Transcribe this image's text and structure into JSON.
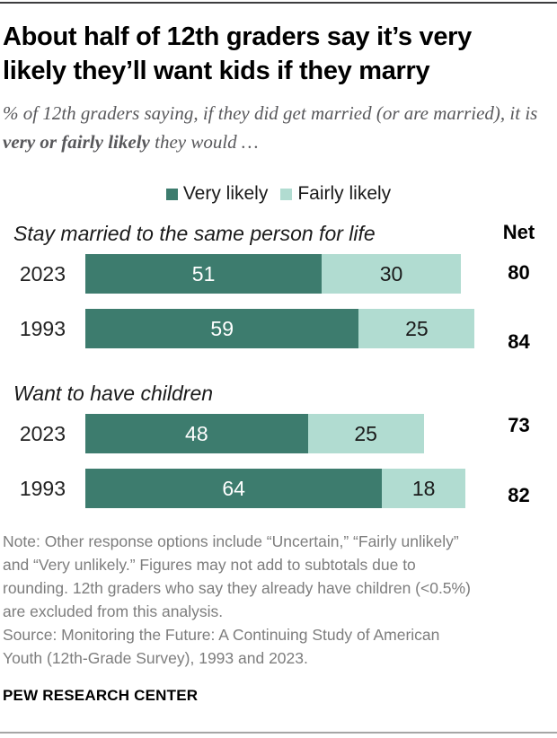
{
  "header": {
    "title_lines": [
      "About half of 12th graders say it’s very",
      "likely they’ll want kids if they marry"
    ],
    "subtitle": {
      "pre": "% of 12th graders saying, if they did get married (or are married), it is ",
      "bold": "very or fairly likely",
      "post": " they would …"
    }
  },
  "legend": [
    {
      "label": "Very likely",
      "color": "#3d7c6e"
    },
    {
      "label": "Fairly likely",
      "color": "#b1dcd1"
    }
  ],
  "net_label": "Net",
  "chart_data": {
    "type": "bar",
    "stacked": true,
    "orientation": "horizontal",
    "unit": "% of 12th graders",
    "series_names": [
      "Very likely",
      "Fairly likely"
    ],
    "xlim": [
      0,
      100
    ],
    "colors": {
      "very_likely": "#3d7c6e",
      "fairly_likely": "#b1dcd1"
    },
    "value_text_colors": {
      "on_dark": "#ffffff",
      "on_light": "#1a1a1a"
    },
    "groups": [
      {
        "title": "Stay married to the same person for life",
        "rows": [
          {
            "year": "2023",
            "very_likely": 51,
            "fairly_likely": 30,
            "net": 80
          },
          {
            "year": "1993",
            "very_likely": 59,
            "fairly_likely": 25,
            "net": 84
          }
        ]
      },
      {
        "title": "Want to have children",
        "rows": [
          {
            "year": "2023",
            "very_likely": 48,
            "fairly_likely": 25,
            "net": 73
          },
          {
            "year": "1993",
            "very_likely": 64,
            "fairly_likely": 18,
            "net": 82
          }
        ]
      }
    ]
  },
  "footer": {
    "note_lines": [
      "Note: Other response options include “Uncertain,” “Fairly unlikely”",
      "and “Very unlikely.” Figures may not add to subtotals due to",
      "rounding. 12th graders who say they already have children (<0.5%)",
      "are excluded from this analysis."
    ],
    "source_lines": [
      "Source: Monitoring the Future: A Continuing Study of American",
      "Youth (12th-Grade Survey), 1993 and 2023."
    ],
    "brand": "PEW RESEARCH CENTER"
  }
}
